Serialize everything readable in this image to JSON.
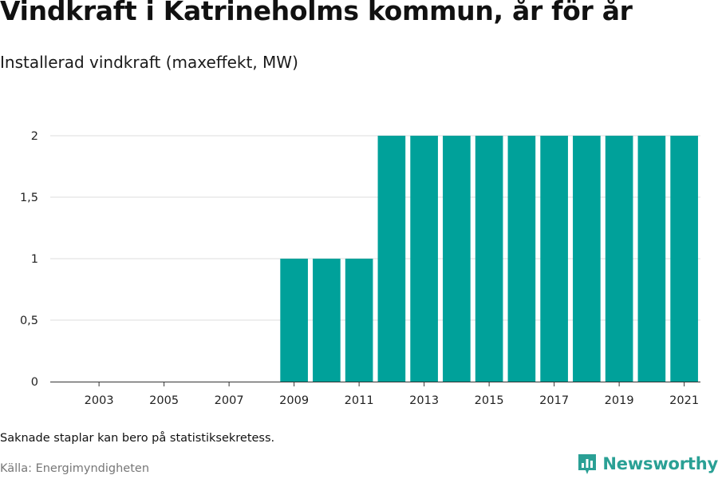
{
  "header": {
    "title": "Vindkraft i Katrineholms kommun, år för år",
    "subtitle": "Installerad vindkraft (maxeffekt, MW)"
  },
  "footer": {
    "note": "Saknade staplar kan bero på statistiksekretess.",
    "source": "Källa: Energimyndigheten",
    "brand": "Newsworthy"
  },
  "colors": {
    "bar": "#00a19a",
    "grid": "#dddddd",
    "axis": "#333333",
    "brand": "#2aa095"
  },
  "icons": {
    "brand": "newsworthy-logo-icon"
  },
  "chart_data": {
    "type": "bar",
    "categories": [
      "2002",
      "2003",
      "2004",
      "2005",
      "2006",
      "2007",
      "2008",
      "2009",
      "2010",
      "2011",
      "2012",
      "2013",
      "2014",
      "2015",
      "2016",
      "2017",
      "2018",
      "2019",
      "2020",
      "2021"
    ],
    "values": [
      0,
      0,
      0,
      0,
      0,
      0,
      0,
      1,
      1,
      1,
      2,
      2,
      2,
      2,
      2,
      2,
      2,
      2,
      2,
      2
    ],
    "x_tick_labels": [
      "2003",
      "2005",
      "2007",
      "2009",
      "2011",
      "2013",
      "2015",
      "2017",
      "2019",
      "2021"
    ],
    "y_ticks": [
      0,
      0.5,
      1,
      1.5,
      2
    ],
    "y_tick_labels": [
      "0",
      "0,5",
      "1",
      "1,5",
      "2"
    ],
    "ylim": [
      0,
      2
    ],
    "xlabel": "",
    "ylabel": "",
    "grid": true,
    "legend": "none"
  }
}
